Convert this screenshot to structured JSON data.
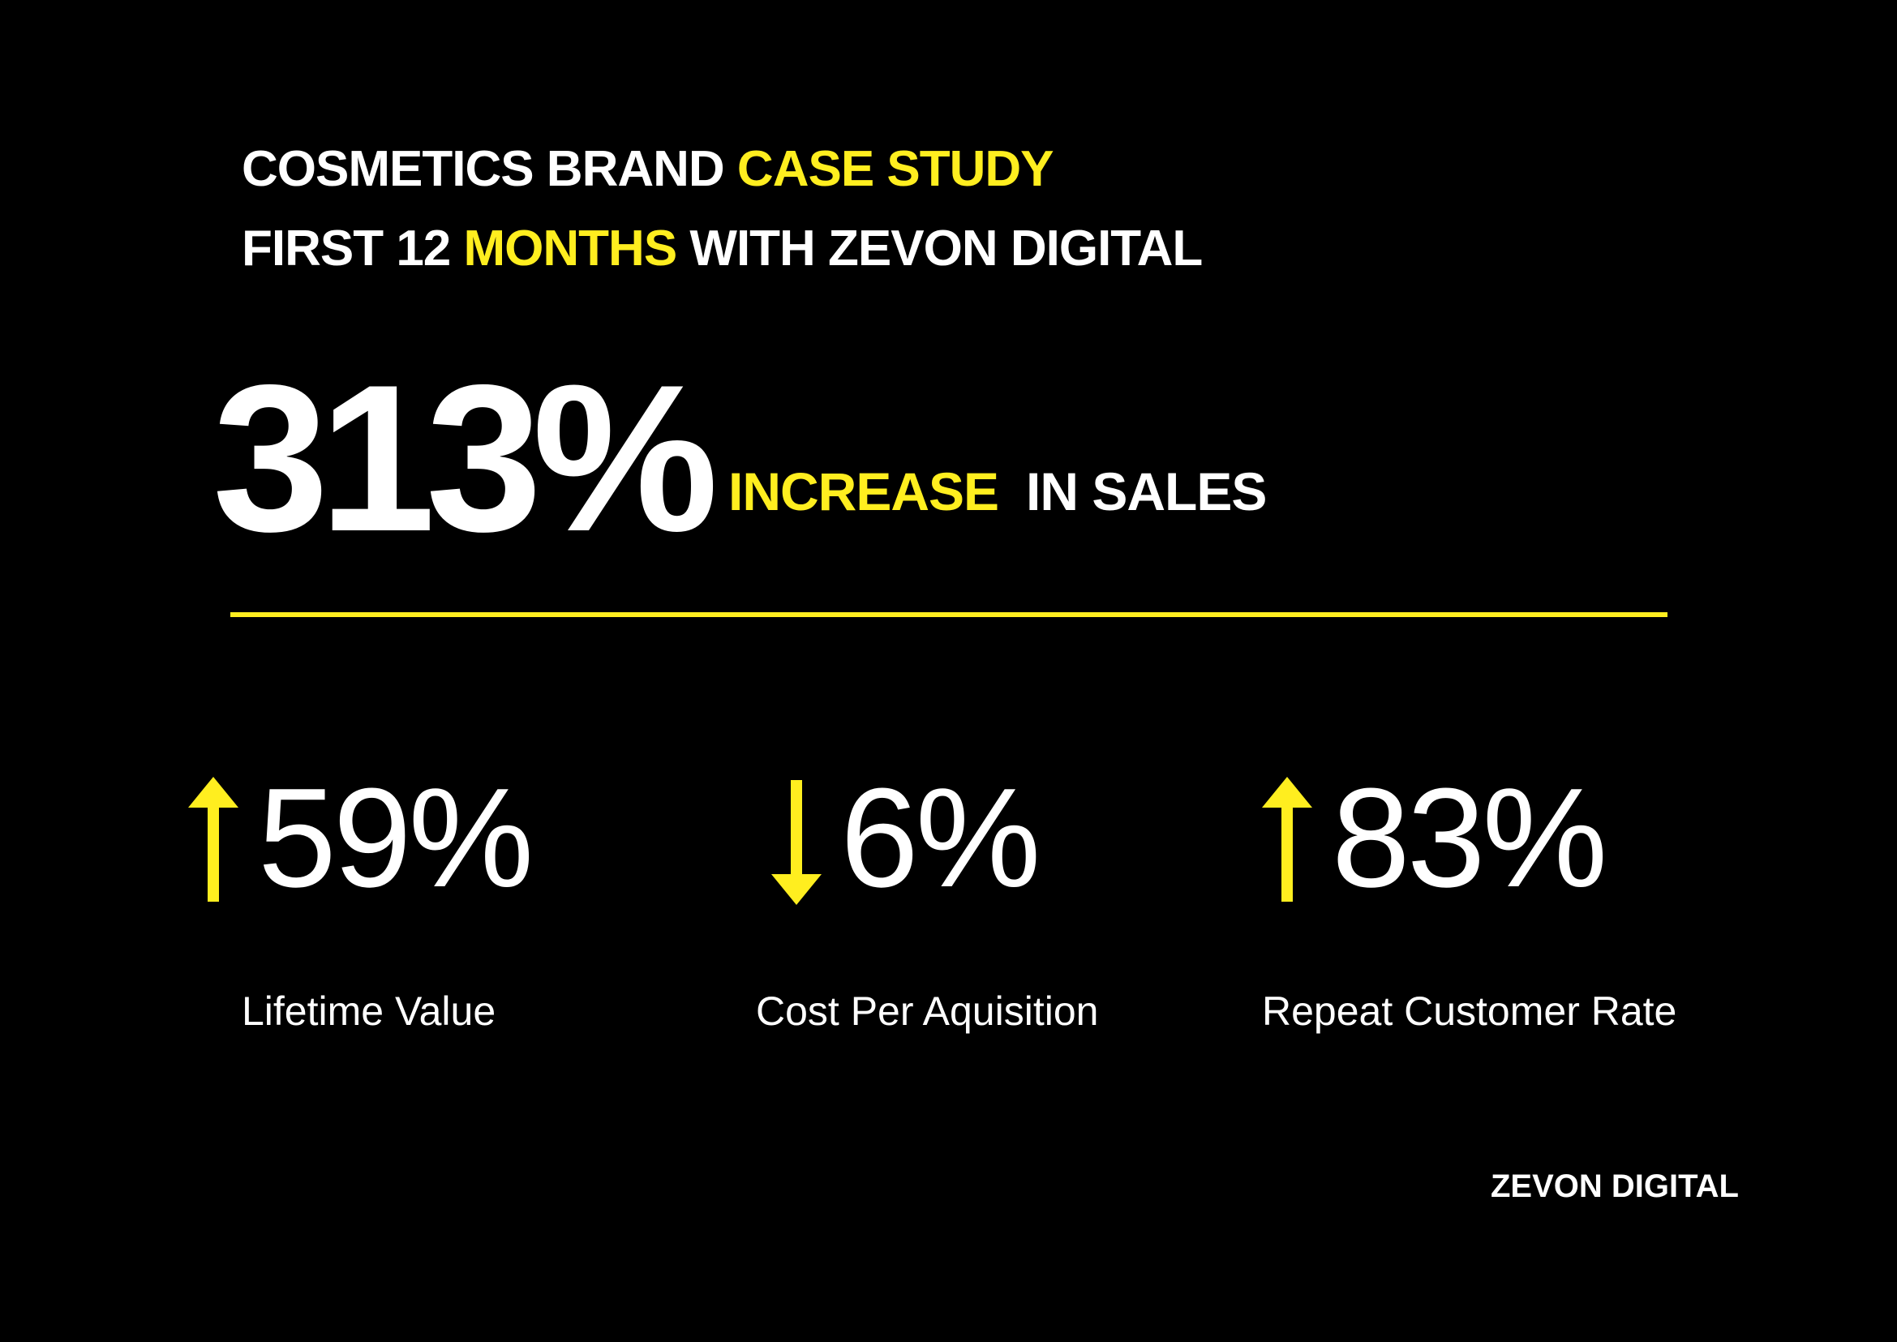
{
  "headline": {
    "line1_white": "COSMETICS BRAND",
    "line1_yellow": "CASE STUDY",
    "line2_white_a": "FIRST 12",
    "line2_yellow": "MONTHS",
    "line2_white_b": "WITH ZEVON DIGITAL"
  },
  "hero": {
    "value": "313%",
    "label_yellow": "INCREASE",
    "label_white": "IN SALES"
  },
  "metrics": [
    {
      "direction": "up",
      "icon": "arrow-up-icon",
      "value": "59%",
      "label": "Lifetime Value"
    },
    {
      "direction": "down",
      "icon": "arrow-down-icon",
      "value": "6%",
      "label": "Cost Per Aquisition"
    },
    {
      "direction": "up",
      "icon": "arrow-up-icon",
      "value": "83%",
      "label": "Repeat Customer Rate"
    }
  ],
  "footer": {
    "brand": "ZEVON DIGITAL"
  },
  "colors": {
    "background": "#000000",
    "text": "#ffffff",
    "accent": "#ffee1f"
  }
}
